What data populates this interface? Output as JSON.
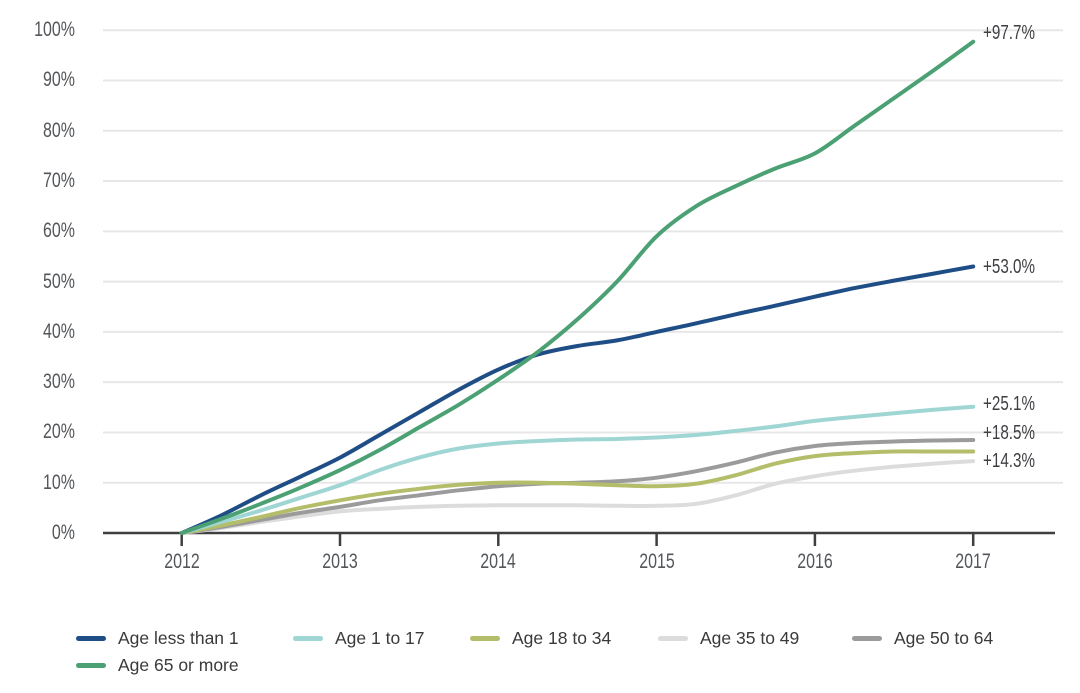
{
  "chart_data": {
    "type": "line",
    "title": "",
    "xlabel": "",
    "ylabel": "",
    "ylim": [
      0,
      100
    ],
    "grid": "horizontal",
    "legend_position": "bottom",
    "y_tick_labels": [
      "0%",
      "10%",
      "20%",
      "30%",
      "40%",
      "50%",
      "60%",
      "70%",
      "80%",
      "90%",
      "100%"
    ],
    "x_tick_labels": [
      "2012",
      "2013",
      "2014",
      "2015",
      "2016",
      "2017"
    ],
    "x_ticks": [
      2012,
      2013,
      2014,
      2015,
      2016,
      2017
    ],
    "x": [
      2012,
      2012.25,
      2012.5,
      2012.75,
      2013,
      2013.25,
      2013.5,
      2013.75,
      2014,
      2014.25,
      2014.5,
      2014.75,
      2015,
      2015.25,
      2015.5,
      2015.75,
      2016,
      2016.25,
      2016.5,
      2016.75,
      2017
    ],
    "series": [
      {
        "name": "Age less than 1",
        "color": "#1f4e87",
        "end_label": "+53.0%",
        "end_value": 53.0,
        "values": [
          0,
          3.5,
          7.5,
          11.2,
          15,
          19.5,
          24,
          28.5,
          32.5,
          35.5,
          37.2,
          38.3,
          40,
          41.7,
          43.5,
          45.2,
          47,
          48.7,
          50.2,
          51.6,
          53.0
        ]
      },
      {
        "name": "Age 1 to 17",
        "color": "#9fd6d4",
        "end_label": "+25.1%",
        "end_value": 25.1,
        "values": [
          0,
          2.2,
          4.5,
          7,
          9.5,
          12.5,
          15,
          16.8,
          17.8,
          18.3,
          18.6,
          18.7,
          19,
          19.5,
          20.3,
          21.2,
          22.3,
          23.1,
          23.8,
          24.5,
          25.1
        ]
      },
      {
        "name": "Age 18 to 34",
        "color": "#b4be6a",
        "end_label": "",
        "end_value": 16.2,
        "values": [
          0,
          1.5,
          3.2,
          5,
          6.5,
          7.8,
          8.8,
          9.6,
          10,
          10,
          9.8,
          9.5,
          9.3,
          9.8,
          11.5,
          13.8,
          15.3,
          15.9,
          16.2,
          16.2,
          16.2
        ]
      },
      {
        "name": "Age 35 to 49",
        "color": "#dcdcdc",
        "end_label": "+14.3%",
        "end_value": 14.3,
        "values": [
          0,
          1,
          2.2,
          3.3,
          4.3,
          4.8,
          5.2,
          5.4,
          5.5,
          5.5,
          5.5,
          5.4,
          5.4,
          5.8,
          7.5,
          9.8,
          11.3,
          12.4,
          13.2,
          13.8,
          14.3
        ]
      },
      {
        "name": "Age 50 to 64",
        "color": "#9b9b9b",
        "end_label": "+18.5%",
        "end_value": 18.5,
        "values": [
          0,
          1.2,
          2.6,
          4,
          5.2,
          6.5,
          7.5,
          8.5,
          9.3,
          9.8,
          10,
          10.3,
          11,
          12.3,
          14,
          16,
          17.3,
          17.9,
          18.2,
          18.4,
          18.5
        ]
      },
      {
        "name": "Age 65 or more",
        "color": "#4ba173",
        "end_label": "+97.7%",
        "end_value": 97.7,
        "values": [
          0,
          2.8,
          5.8,
          9,
          12.5,
          16.5,
          21,
          25.5,
          30.5,
          36,
          42.5,
          50,
          59,
          65,
          69,
          72.5,
          75.5,
          81,
          86.5,
          92,
          97.7
        ]
      }
    ],
    "colors": {
      "gridline": "#e7e7e7",
      "axis": "#3f3f3f",
      "tick_text": "#53565a",
      "annotation_text": "#3d3f42"
    }
  }
}
